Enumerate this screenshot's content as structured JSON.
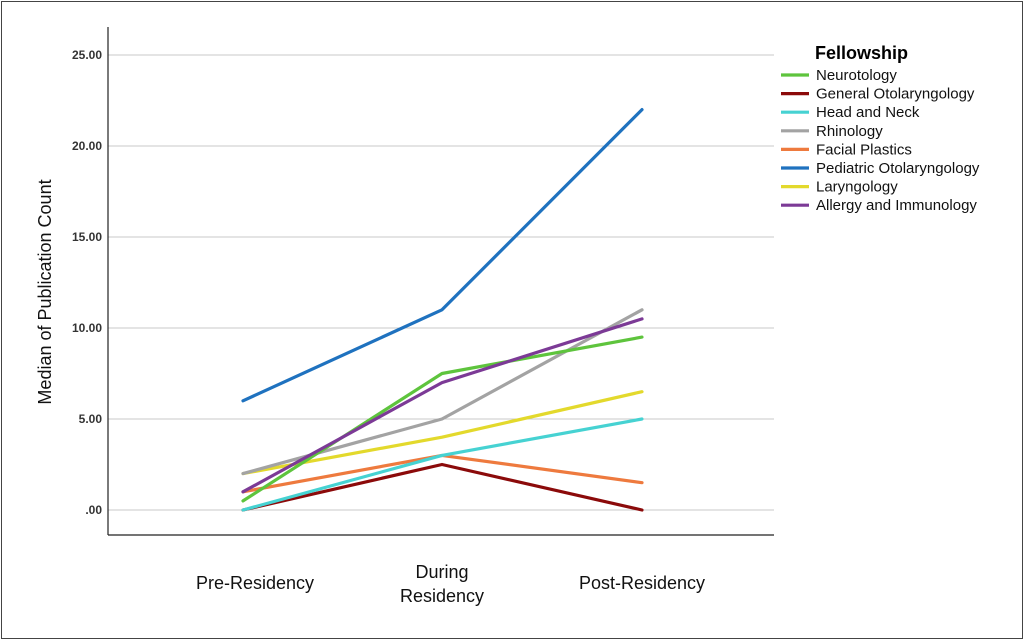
{
  "chart_data": {
    "type": "line",
    "title": "",
    "xlabel": "",
    "ylabel": "Median of Publication Count",
    "categories": [
      [
        "Pre-Residency"
      ],
      [
        "During",
        "Residency"
      ],
      [
        "Post-Residency"
      ]
    ],
    "y_ticks": [
      ".00",
      "5.00",
      "10.00",
      "15.00",
      "20.00",
      "25.00"
    ],
    "ylim": [
      -1.5,
      26.5
    ],
    "grid": "horizontal",
    "legend": {
      "title": "Fellowship",
      "placement": "top-right"
    },
    "series": [
      {
        "name": "Neurotology",
        "color": "#5ec43d",
        "values": [
          0.5,
          7.5,
          9.5
        ]
      },
      {
        "name": "General Otolaryngology",
        "color": "#8b0a0a",
        "values": [
          0.0,
          2.5,
          0.0
        ]
      },
      {
        "name": "Head and Neck",
        "color": "#46d2d2",
        "values": [
          0.0,
          3.0,
          5.0
        ]
      },
      {
        "name": "Rhinology",
        "color": "#a3a3a3",
        "values": [
          2.0,
          5.0,
          11.0
        ]
      },
      {
        "name": "Facial Plastics",
        "color": "#ee7a3e",
        "values": [
          1.0,
          3.0,
          1.5
        ]
      },
      {
        "name": "Pediatric Otolaryngology",
        "color": "#1f72bf",
        "values": [
          6.0,
          11.0,
          22.0
        ]
      },
      {
        "name": "Laryngology",
        "color": "#e3d92c",
        "values": [
          2.0,
          4.0,
          6.5
        ]
      },
      {
        "name": "Allergy and Immunology",
        "color": "#7c3a96",
        "values": [
          1.0,
          7.0,
          10.5
        ]
      }
    ],
    "draw_order": [
      1,
      4,
      2,
      6,
      3,
      0,
      7,
      5
    ]
  }
}
